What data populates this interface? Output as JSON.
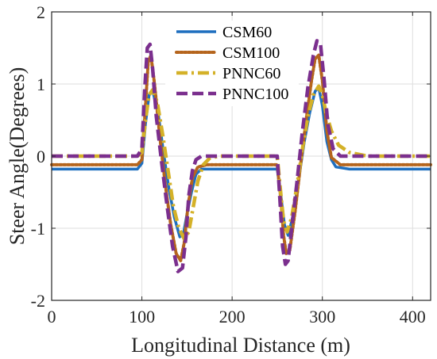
{
  "chart_data": {
    "type": "line",
    "title": "",
    "xlabel": "Longitudinal Distance (m)",
    "ylabel": "Steer Angle(Degrees)",
    "xlim": [
      0,
      420
    ],
    "ylim": [
      -2,
      2
    ],
    "xticks": [
      0,
      100,
      200,
      300,
      400
    ],
    "yticks": [
      -2,
      -1,
      0,
      1,
      2
    ],
    "xtick_labels": [
      "0",
      "100",
      "200",
      "300",
      "400"
    ],
    "ytick_labels": [
      "-2",
      "-1",
      "0",
      "1",
      "2"
    ],
    "grid": true,
    "legend_position": "top-center",
    "series": [
      {
        "name": "CSM60",
        "color": "#1f6fbf",
        "style": "solid",
        "x": [
          0,
          95,
          100,
          104,
          108,
          112,
          118,
          124,
          130,
          136,
          142,
          146,
          150,
          155,
          160,
          166,
          175,
          200,
          250,
          254,
          258,
          262,
          268,
          274,
          280,
          286,
          292,
          296,
          300,
          305,
          310,
          315,
          330,
          420
        ],
        "y": [
          -0.18,
          -0.18,
          -0.1,
          0.45,
          0.85,
          0.9,
          0.6,
          0.05,
          -0.45,
          -0.85,
          -1.12,
          -1.08,
          -0.8,
          -0.5,
          -0.25,
          -0.18,
          -0.18,
          -0.18,
          -0.18,
          -0.55,
          -0.95,
          -1.1,
          -0.8,
          -0.3,
          0.2,
          0.6,
          0.9,
          0.95,
          0.7,
          0.2,
          -0.05,
          -0.15,
          -0.18,
          -0.18
        ]
      },
      {
        "name": "CSM100",
        "color": "#b5651d",
        "style": "dotted",
        "x": [
          0,
          95,
          100,
          104,
          107,
          110,
          114,
          120,
          126,
          132,
          138,
          143,
          147,
          151,
          156,
          162,
          172,
          200,
          250,
          254,
          257,
          260,
          264,
          270,
          276,
          282,
          288,
          292,
          296,
          300,
          305,
          310,
          320,
          420
        ],
        "y": [
          -0.12,
          -0.12,
          -0.05,
          0.7,
          1.3,
          1.4,
          1.0,
          0.25,
          -0.4,
          -0.95,
          -1.35,
          -1.45,
          -1.2,
          -0.7,
          -0.3,
          -0.15,
          -0.12,
          -0.12,
          -0.12,
          -0.6,
          -1.1,
          -1.35,
          -1.3,
          -0.75,
          -0.1,
          0.5,
          1.05,
          1.35,
          1.4,
          1.05,
          0.35,
          -0.02,
          -0.12,
          -0.12
        ]
      },
      {
        "name": "PNNC60",
        "color": "#d4b128",
        "style": "dashdot",
        "x": [
          0,
          95,
          100,
          104,
          108,
          112,
          117,
          123,
          129,
          135,
          141,
          147,
          152,
          157,
          162,
          168,
          175,
          185,
          200,
          250,
          253,
          257,
          261,
          266,
          272,
          278,
          284,
          290,
          296,
          300,
          304,
          310,
          318,
          330,
          350,
          420
        ],
        "y": [
          0.0,
          0.0,
          0.05,
          0.5,
          0.85,
          0.92,
          0.75,
          0.3,
          -0.2,
          -0.7,
          -1.0,
          -1.15,
          -1.05,
          -0.7,
          -0.35,
          -0.12,
          -0.03,
          0.0,
          0.0,
          0.0,
          -0.4,
          -0.9,
          -1.05,
          -0.85,
          -0.4,
          0.1,
          0.55,
          0.85,
          0.97,
          0.85,
          0.6,
          0.35,
          0.15,
          0.05,
          0.0,
          0.0
        ]
      },
      {
        "name": "PNNC100",
        "color": "#7b2f8e",
        "style": "dashed",
        "x": [
          0,
          95,
          100,
          103,
          106,
          109,
          112,
          116,
          122,
          128,
          134,
          140,
          145,
          149,
          152,
          156,
          160,
          166,
          175,
          200,
          250,
          253,
          256,
          259,
          262,
          266,
          272,
          278,
          284,
          290,
          294,
          298,
          302,
          306,
          312,
          320,
          420
        ],
        "y": [
          0.0,
          0.0,
          0.1,
          0.9,
          1.5,
          1.55,
          1.2,
          0.55,
          -0.1,
          -0.7,
          -1.25,
          -1.6,
          -1.55,
          -1.1,
          -0.55,
          -0.2,
          -0.05,
          0.0,
          0.0,
          0.0,
          0.0,
          -0.6,
          -1.25,
          -1.5,
          -1.45,
          -1.0,
          -0.35,
          0.35,
          0.95,
          1.4,
          1.6,
          1.55,
          1.05,
          0.45,
          0.1,
          0.0,
          0.0
        ]
      }
    ]
  }
}
